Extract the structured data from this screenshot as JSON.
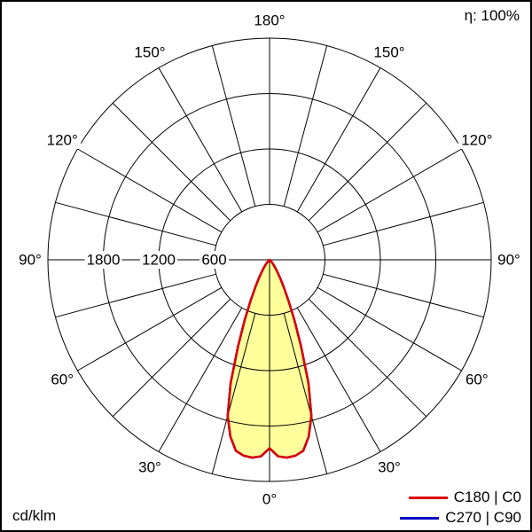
{
  "chart_data": {
    "type": "polar",
    "subtype": "luminous-intensity-distribution",
    "unit_label": "cd/klm",
    "efficiency_label": "η: 100%",
    "radial_max": 2400,
    "ring_step": 600,
    "spoke_step_deg": 15,
    "radial_ticks": [
      {
        "value": 1800,
        "label": "1800"
      },
      {
        "value": 1200,
        "label": "1200"
      },
      {
        "value": 600,
        "label": "600"
      }
    ],
    "angle_ticks": [
      {
        "deg": 0,
        "label": "0°"
      },
      {
        "deg": 30,
        "label": "30°"
      },
      {
        "deg": 60,
        "label": "60°"
      },
      {
        "deg": 90,
        "label": "90°"
      },
      {
        "deg": 120,
        "label": "120°"
      },
      {
        "deg": 150,
        "label": "150°"
      },
      {
        "deg": 180,
        "label": "180°"
      }
    ],
    "fill_color": "#ffff9b",
    "legend": [
      {
        "label": "C180 | C0",
        "color": "#dd0000"
      },
      {
        "label": "C270 | C90",
        "color": "#0000c8"
      }
    ],
    "series": [
      {
        "name": "C180 | C0",
        "color": "#dd0000",
        "gamma_deg": [
          0,
          2.5,
          5,
          7.5,
          10,
          12.5,
          15,
          17.5,
          20,
          22.5,
          25,
          27.5,
          30,
          32.5,
          35,
          37.5,
          40,
          42.5,
          45,
          47.5,
          50,
          52.5,
          55,
          60,
          75,
          90
        ],
        "values": [
          2040,
          2130,
          2150,
          2140,
          2100,
          1960,
          1750,
          1400,
          1000,
          700,
          480,
          330,
          230,
          165,
          115,
          80,
          55,
          35,
          20,
          10,
          5,
          2,
          0,
          0,
          0,
          0
        ]
      },
      {
        "name": "C270 | C90",
        "color": "#0000c8",
        "gamma_deg": [
          0,
          2.5,
          5,
          7.5,
          10,
          12.5,
          15,
          17.5,
          20,
          22.5,
          25,
          27.5,
          30,
          32.5,
          35,
          37.5,
          40,
          42.5,
          45,
          47.5,
          50,
          52.5,
          55,
          60,
          75,
          90
        ],
        "values": [
          2040,
          2130,
          2150,
          2140,
          2100,
          1960,
          1750,
          1400,
          1000,
          700,
          480,
          330,
          230,
          165,
          115,
          80,
          55,
          35,
          20,
          10,
          5,
          2,
          0,
          0,
          0,
          0
        ]
      }
    ]
  }
}
